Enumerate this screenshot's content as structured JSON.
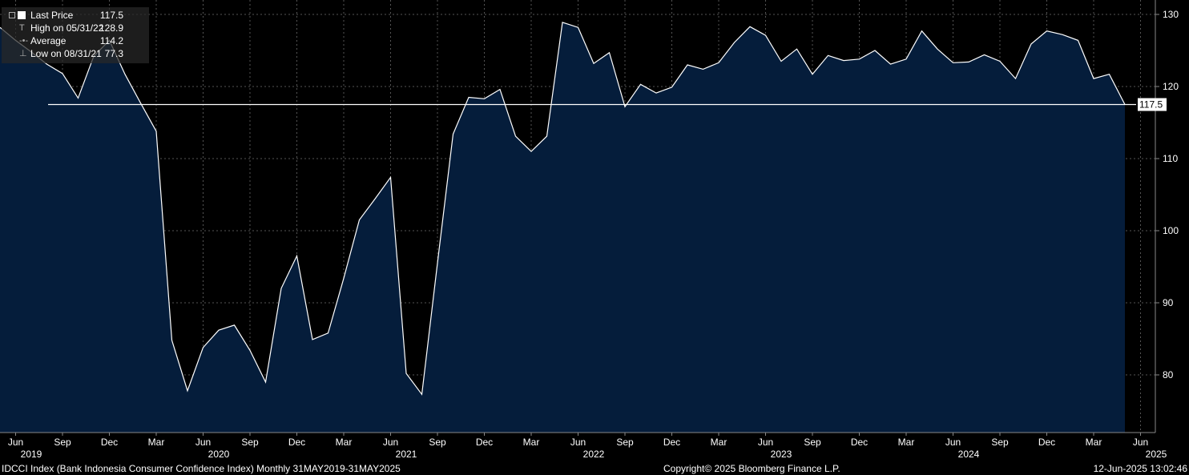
{
  "legend": {
    "last_price": {
      "label": "Last Price",
      "value": "117.5"
    },
    "high": {
      "label": "High on 05/31/22",
      "value": "128.9"
    },
    "average": {
      "label": "Average",
      "value": "114.2"
    },
    "low": {
      "label": "Low on 08/31/21",
      "value": "77.3"
    }
  },
  "footer": {
    "left": "IDCCI Index (Bank Indonesia Consumer Confidence Index)  Monthly 31MAY2019-31MAY2025",
    "center": "Copyright© 2025 Bloomberg Finance L.P.",
    "right": "12-Jun-2025 13:02:46"
  },
  "colors": {
    "background": "#000000",
    "area_fill": "#051d3b",
    "line": "#ffffff",
    "grid": "#5a5a5a"
  },
  "chart_data": {
    "type": "area",
    "x_start": "2019-05",
    "x_end": "2025-05",
    "ylim": [
      72,
      132
    ],
    "y_ticks": [
      80,
      90,
      100,
      110,
      120,
      130
    ],
    "y_tick_labels": [
      "80",
      "90",
      "100",
      "110",
      "120",
      "130"
    ],
    "x_tick_labels": [
      {
        "month": "2019-06",
        "label": "Jun"
      },
      {
        "month": "2019-09",
        "label": "Sep"
      },
      {
        "month": "2019-12",
        "label": "Dec"
      },
      {
        "month": "2020-03",
        "label": "Mar"
      },
      {
        "month": "2020-06",
        "label": "Jun"
      },
      {
        "month": "2020-09",
        "label": "Sep"
      },
      {
        "month": "2020-12",
        "label": "Dec"
      },
      {
        "month": "2021-03",
        "label": "Mar"
      },
      {
        "month": "2021-06",
        "label": "Jun"
      },
      {
        "month": "2021-09",
        "label": "Sep"
      },
      {
        "month": "2021-12",
        "label": "Dec"
      },
      {
        "month": "2022-03",
        "label": "Mar"
      },
      {
        "month": "2022-06",
        "label": "Jun"
      },
      {
        "month": "2022-09",
        "label": "Sep"
      },
      {
        "month": "2022-12",
        "label": "Dec"
      },
      {
        "month": "2023-03",
        "label": "Mar"
      },
      {
        "month": "2023-06",
        "label": "Jun"
      },
      {
        "month": "2023-09",
        "label": "Sep"
      },
      {
        "month": "2023-12",
        "label": "Dec"
      },
      {
        "month": "2024-03",
        "label": "Mar"
      },
      {
        "month": "2024-06",
        "label": "Jun"
      },
      {
        "month": "2024-09",
        "label": "Sep"
      },
      {
        "month": "2024-12",
        "label": "Dec"
      },
      {
        "month": "2025-03",
        "label": "Mar"
      },
      {
        "month": "2025-06",
        "label": "Jun"
      }
    ],
    "year_labels": [
      {
        "month": "2019-07",
        "label": "2019"
      },
      {
        "month": "2020-07",
        "label": "2020"
      },
      {
        "month": "2021-07",
        "label": "2021"
      },
      {
        "month": "2022-07",
        "label": "2022"
      },
      {
        "month": "2023-07",
        "label": "2023"
      },
      {
        "month": "2024-07",
        "label": "2024"
      },
      {
        "month": "2025-07",
        "label": "2025"
      }
    ],
    "last_price_line": 117.5,
    "last_price_label": "117.5",
    "series": [
      {
        "values": [
          128.2,
          126.4,
          124.8,
          123.1,
          121.8,
          118.4,
          124.2,
          126.4,
          121.7,
          117.7,
          113.8,
          84.8,
          77.8,
          83.8,
          86.2,
          86.9,
          83.4,
          79.0,
          92.0,
          96.5,
          84.9,
          85.8,
          93.4,
          101.5,
          104.4,
          107.4,
          80.2,
          77.3,
          95.5,
          113.4,
          118.5,
          118.3,
          119.6,
          113.1,
          111.0,
          113.1,
          128.9,
          128.2,
          123.2,
          124.7,
          117.2,
          120.3,
          119.1,
          119.9,
          123.0,
          122.4,
          123.3,
          126.1,
          128.3,
          127.1,
          123.5,
          125.2,
          121.7,
          124.3,
          123.6,
          123.8,
          125.0,
          123.1,
          123.8,
          127.7,
          125.2,
          123.3,
          123.4,
          124.4,
          123.5,
          121.1,
          125.9,
          127.7,
          127.2,
          126.4,
          121.1,
          121.7,
          117.5
        ]
      }
    ]
  }
}
